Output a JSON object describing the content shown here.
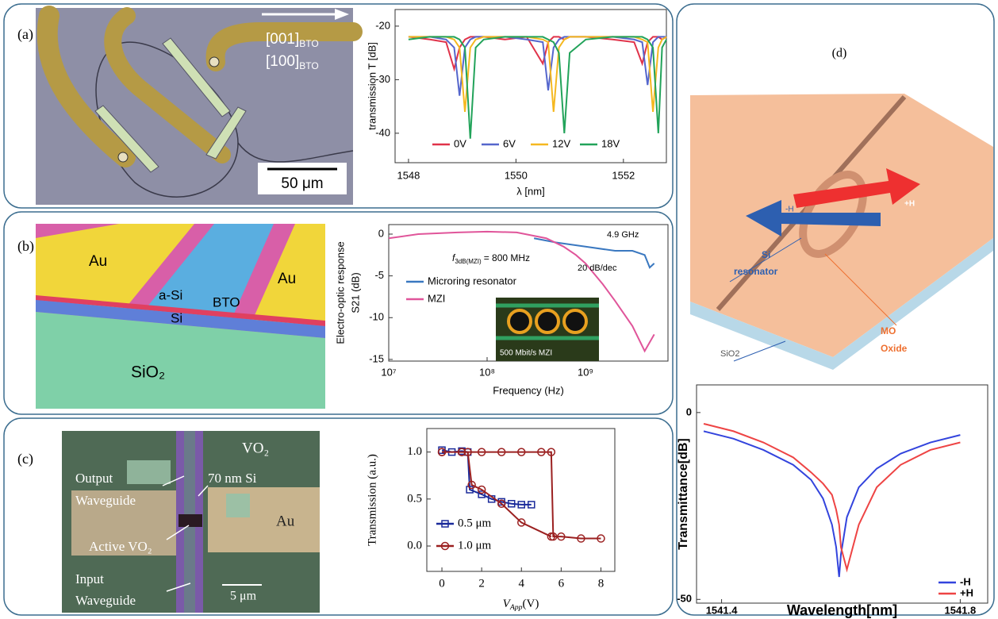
{
  "chart_data": [
    {
      "type": "line",
      "x_label": "λ [nm]",
      "y_label": "transmission T [dB]",
      "x": [
        1548,
        1548.4,
        1548.7,
        1548.85,
        1548.95,
        1549.05,
        1549.15,
        1549.25,
        1549.4,
        1549.8,
        1550.2,
        1550.5,
        1550.6,
        1550.7,
        1550.8,
        1550.9,
        1551.0,
        1551.3,
        1551.8,
        1552.2,
        1552.35,
        1552.45,
        1552.55,
        1552.65,
        1552.72,
        1552.8
      ],
      "series": [
        {
          "name": "0V",
          "color": "#e0334a",
          "values": [
            -22,
            -22.5,
            -23,
            -28,
            -24,
            -22.5,
            -22,
            -22,
            -22,
            -22.5,
            -22,
            -27,
            -23,
            -22,
            -22,
            -22.5,
            -22,
            -22,
            -22.5,
            -23,
            -27,
            -23,
            -22,
            -22,
            -22.5,
            -22
          ]
        },
        {
          "name": "6V",
          "color": "#5566cc",
          "values": [
            -22,
            -22,
            -22.5,
            -24,
            -33,
            -24,
            -22.5,
            -22,
            -22,
            -22,
            -22.5,
            -23,
            -32,
            -24,
            -22.5,
            -22,
            -22,
            -22,
            -22,
            -22.5,
            -23,
            -31,
            -23,
            -22,
            -22,
            -22
          ]
        },
        {
          "name": "12V",
          "color": "#f5b820",
          "values": [
            -22,
            -22,
            -22,
            -22.5,
            -24,
            -36,
            -24,
            -22.5,
            -22,
            -22,
            -22,
            -22.5,
            -23,
            -36,
            -24,
            -22.5,
            -22,
            -22,
            -22,
            -22,
            -22.5,
            -23,
            -36,
            -24,
            -22.5,
            -22
          ]
        },
        {
          "name": "18V",
          "color": "#22a35a",
          "values": [
            -22.5,
            -22,
            -22,
            -22,
            -22.5,
            -24,
            -41,
            -24,
            -22.5,
            -22,
            -22,
            -22,
            -22.5,
            -23,
            -25,
            -40,
            -25,
            -22.5,
            -22,
            -22,
            -22,
            -22.5,
            -24,
            -40,
            -24,
            -22.5
          ]
        }
      ],
      "xlim": [
        1547.75,
        1552.8
      ],
      "xticks": [
        1548,
        1550,
        1552
      ],
      "ylim": [
        -45.5,
        -16.9
      ],
      "yticks": [
        -20,
        -30,
        -40
      ],
      "legend": "lower center"
    },
    {
      "type": "line",
      "x_label": "Frequency (Hz)",
      "y_label": [
        "Electro-optic response",
        "S21 (dB)"
      ],
      "log_x": true,
      "series": [
        {
          "name": "Microring resonator",
          "color": "#3a78c0",
          "x": [
            300000000,
            500000000,
            1000000000,
            2000000000,
            3000000000,
            4000000000,
            4500000000,
            5000000000
          ],
          "values": [
            -0.5,
            -1,
            -1.5,
            -2,
            -2,
            -2.5,
            -4,
            -3.5
          ]
        },
        {
          "name": "MZI",
          "color": "#e0559a",
          "x": [
            10000000,
            20000000,
            50000000,
            100000000,
            200000000,
            400000000,
            600000000,
            800000000,
            1000000000,
            1500000000,
            2000000000,
            3000000000,
            4000000000,
            5000000000
          ],
          "values": [
            -0.5,
            0,
            0.2,
            0.3,
            0.2,
            -0.5,
            -1.5,
            -2.5,
            -3.5,
            -6,
            -8,
            -11,
            -14,
            -12
          ]
        }
      ],
      "xlim": [
        10000000,
        6900000000
      ],
      "xticks": [
        {
          "value": 10000000,
          "label": "10⁷"
        },
        {
          "value": 100000000,
          "label": "10⁸"
        },
        {
          "value": 1000000000,
          "label": "10⁹"
        }
      ],
      "ylim": [
        -15.2,
        1.14
      ],
      "yticks": [
        0,
        -5,
        -10,
        -15
      ],
      "legend": "center left",
      "f3db": {
        "main": "f",
        "sub": "3dB(MZI)",
        "tail": "= 800 MHz"
      },
      "annotations": [
        "4.9 GHz",
        "20 dB/dec",
        "500 Mbit/s MZI"
      ]
    },
    {
      "type": "line",
      "x_label": {
        "main": "V",
        "sub": "App",
        "tail": "(V)"
      },
      "y_label": "Transmission (a.u.)",
      "series": [
        {
          "name": "0.5 μm",
          "color": "#1a2a9a",
          "marker": "square",
          "x": [
            0,
            0.5,
            1,
            1.3,
            1.4,
            2,
            2.5,
            3,
            3.5,
            4,
            4.5
          ],
          "values": [
            1.02,
            1.0,
            1.01,
            1.0,
            0.6,
            0.55,
            0.5,
            0.47,
            0.45,
            0.44,
            0.44
          ]
        },
        {
          "name": "1.0 μm",
          "color": "#9b2020",
          "marker": "circle",
          "x": [
            0,
            1,
            2,
            3,
            4,
            5,
            5.5,
            5.6,
            6,
            7,
            8,
            null,
            5.5,
            4,
            3,
            2,
            1.5,
            1.3,
            1,
            0
          ],
          "values": [
            1.0,
            1.0,
            1.0,
            1.0,
            1.0,
            1.0,
            1.0,
            0.1,
            0.1,
            0.08,
            0.08,
            null,
            0.1,
            0.25,
            0.45,
            0.6,
            0.65,
            1.0,
            1.0,
            1.0
          ]
        }
      ],
      "xlim": [
        -0.76,
        8.7
      ],
      "xticks": [
        0,
        2,
        4,
        6,
        8
      ],
      "ylim": [
        -0.27,
        1.25
      ],
      "yticks": [
        {
          "value": 0,
          "label": "0.0"
        },
        {
          "value": 0.5,
          "label": "0.5"
        },
        {
          "value": 1,
          "label": "1.0"
        }
      ],
      "legend": "lower left"
    },
    {
      "type": "line",
      "x_label": "Wavelength[nm]",
      "y_label": "Transmittance[dB]",
      "x": [
        1541.37,
        1541.42,
        1541.47,
        1541.52,
        1541.55,
        1541.57,
        1541.585,
        1541.592,
        1541.597,
        1541.6,
        1541.61,
        1541.63,
        1541.66,
        1541.7,
        1541.75,
        1541.8
      ],
      "series": [
        {
          "name": "-H",
          "color": "#3344dd",
          "values": [
            -5,
            -7,
            -10,
            -14,
            -18,
            -23,
            -30,
            -36,
            -44,
            -38,
            -28,
            -20,
            -15,
            -11,
            -8,
            -6
          ]
        },
        {
          "name": "+H",
          "color": "#ee4444",
          "values": [
            -3,
            -5,
            -8,
            -12,
            -16,
            -19,
            -22,
            -26,
            -30,
            -36,
            -42,
            -30,
            -20,
            -14,
            -10,
            -8
          ]
        }
      ],
      "xlim": [
        1541.358,
        1541.846
      ],
      "xticks": [
        1541.4,
        1541.8
      ],
      "ylim": [
        -51,
        7.4
      ],
      "yticks": [
        0,
        -50
      ],
      "legend": "lower right"
    }
  ],
  "figure": {
    "a": {
      "tag": "(a)",
      "dir1": {
        "main": "[001]",
        "sub": "BTO"
      },
      "dir2": {
        "main": "[100]",
        "sub": "BTO"
      },
      "scale": "50 μm"
    },
    "b": {
      "tag": "(b)",
      "au_left": "Au",
      "au_right": "Au",
      "asi": "a-Si",
      "bto": "BTO",
      "si": "Si",
      "sio2": "SiO₂"
    },
    "c": {
      "tag": "(c)",
      "vo2": "VO₂",
      "si": "70 nm Si",
      "output": [
        "Output",
        "Waveguide"
      ],
      "active": "Active VO₂",
      "au": "Au",
      "input": [
        "Input",
        "Waveguide"
      ],
      "scale": "5 μm"
    },
    "d": {
      "tag": "(d)",
      "si_res": [
        "Si",
        "resonator"
      ],
      "minus_h": "-H",
      "plus_h": "+H",
      "mo": [
        "MO",
        "Oxide"
      ],
      "sio2": "SiO2"
    }
  }
}
